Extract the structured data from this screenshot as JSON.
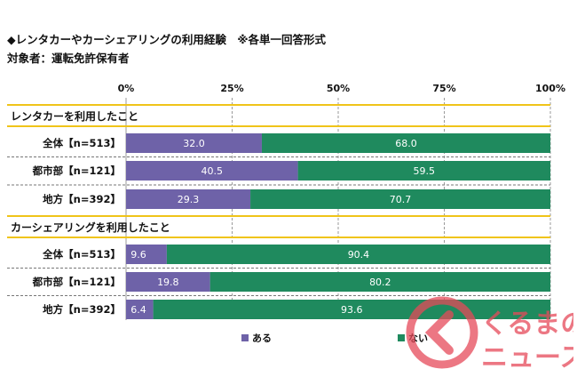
{
  "title": "◆レンタカーやカーシェアリングの利用経験　※各単一回答形式",
  "subtitle": "対象者：運転免許保有者",
  "chart_data": {
    "type": "bar",
    "orientation": "horizontal",
    "stacked": true,
    "percent_stacked": true,
    "xlim": [
      0,
      100
    ],
    "ticks": [
      "0%",
      "25%",
      "50%",
      "75%",
      "100%"
    ],
    "grid": true,
    "legend_position": "bottom",
    "colors": {
      "aru": "#6e62a8",
      "nai": "#1f8a5e",
      "section_line": "#f0c419"
    },
    "sections": [
      {
        "header": "レンタカーを利用したこと",
        "rows": [
          {
            "label": "全体【n=513】",
            "aru": 32.0,
            "nai": 68.0
          },
          {
            "label": "都市部【n=121】",
            "aru": 40.5,
            "nai": 59.5
          },
          {
            "label": "地方【n=392】",
            "aru": 29.3,
            "nai": 70.7
          }
        ]
      },
      {
        "header": "カーシェアリングを利用したこと",
        "rows": [
          {
            "label": "全体【n=513】",
            "aru": 9.6,
            "nai": 90.4
          },
          {
            "label": "都市部【n=121】",
            "aru": 19.8,
            "nai": 80.2
          },
          {
            "label": "地方【n=392】",
            "aru": 6.4,
            "nai": 93.6
          }
        ]
      }
    ],
    "series": [
      {
        "key": "aru",
        "name": "ある"
      },
      {
        "key": "nai",
        "name": "ない"
      }
    ]
  },
  "legend": {
    "aru": "ある",
    "nai": "ない"
  },
  "logo": {
    "line1": "くるまの",
    "line2": "ニュース"
  }
}
